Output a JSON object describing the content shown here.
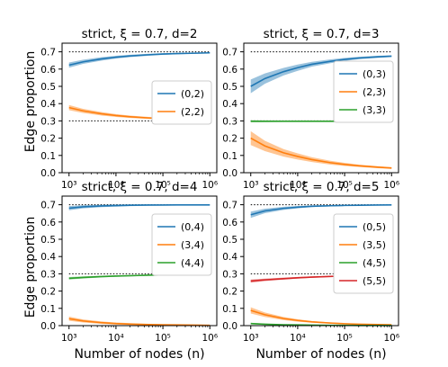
{
  "figure": {
    "ylabel_top": "Edge proportion",
    "ylabel_bottom": "Edge proportion",
    "xlabel_left": "Number of nodes (n)",
    "xlabel_right": "Number of nodes (n)"
  },
  "chart_data": [
    {
      "type": "line",
      "title": "strict, ξ = 0.7, d=2",
      "xscale": "log",
      "xlim": [
        1000,
        1000000
      ],
      "ylim": [
        0,
        0.75
      ],
      "xticks": [
        "10³",
        "10⁴",
        "10⁵",
        "10⁶"
      ],
      "yticks": [
        "0.0",
        "0.1",
        "0.2",
        "0.3",
        "0.4",
        "0.5",
        "0.6",
        "0.7"
      ],
      "reference_lines": [
        0.7,
        0.3
      ],
      "legend_position": "right",
      "x": [
        1000,
        2000,
        5000,
        10000,
        20000,
        50000,
        100000,
        200000,
        500000,
        1000000
      ],
      "series": [
        {
          "name": "(0,2)",
          "color": "#1f77b4",
          "values": [
            0.623,
            0.642,
            0.659,
            0.669,
            0.676,
            0.683,
            0.687,
            0.69,
            0.692,
            0.694
          ],
          "band": [
            0.015,
            0.012,
            0.01,
            0.008,
            0.007,
            0.006,
            0.005,
            0.004,
            0.003,
            0.003
          ]
        },
        {
          "name": "(2,2)",
          "color": "#ff7f0e",
          "values": [
            0.377,
            0.358,
            0.341,
            0.331,
            0.324,
            0.317,
            0.313,
            0.31,
            0.308,
            0.306
          ],
          "band": [
            0.015,
            0.012,
            0.01,
            0.008,
            0.007,
            0.006,
            0.005,
            0.004,
            0.003,
            0.003
          ]
        }
      ]
    },
    {
      "type": "line",
      "title": "strict, ξ = 0.7, d=3",
      "xscale": "log",
      "xlim": [
        1000,
        1000000
      ],
      "ylim": [
        0,
        0.75
      ],
      "xticks": [
        "10³",
        "10⁴",
        "10⁵",
        "10⁶"
      ],
      "yticks": [
        "0.0",
        "0.1",
        "0.2",
        "0.3",
        "0.4",
        "0.5",
        "0.6",
        "0.7"
      ],
      "reference_lines": [
        0.7,
        0.3
      ],
      "legend_position": "right",
      "x": [
        1000,
        2000,
        5000,
        10000,
        20000,
        50000,
        100000,
        200000,
        500000,
        1000000
      ],
      "series": [
        {
          "name": "(0,3)",
          "color": "#1f77b4",
          "values": [
            0.5,
            0.545,
            0.585,
            0.608,
            0.628,
            0.645,
            0.656,
            0.664,
            0.671,
            0.675
          ],
          "band": [
            0.04,
            0.03,
            0.022,
            0.018,
            0.014,
            0.011,
            0.009,
            0.007,
            0.006,
            0.005
          ]
        },
        {
          "name": "(2,3)",
          "color": "#ff7f0e",
          "values": [
            0.2,
            0.155,
            0.115,
            0.094,
            0.076,
            0.058,
            0.048,
            0.04,
            0.032,
            0.027
          ],
          "band": [
            0.04,
            0.03,
            0.022,
            0.018,
            0.014,
            0.011,
            0.009,
            0.007,
            0.006,
            0.005
          ]
        },
        {
          "name": "(3,3)",
          "color": "#2ca02c",
          "values": [
            0.298,
            0.298,
            0.298,
            0.298,
            0.298,
            0.298,
            0.298,
            0.298,
            0.298,
            0.298
          ],
          "band": [
            0.006,
            0.005,
            0.004,
            0.004,
            0.003,
            0.003,
            0.002,
            0.002,
            0.002,
            0.002
          ]
        }
      ]
    },
    {
      "type": "line",
      "title": "strict, ξ = 0.7, d=4",
      "xscale": "log",
      "xlim": [
        1000,
        1000000
      ],
      "ylim": [
        0,
        0.75
      ],
      "xticks": [
        "10³",
        "10⁴",
        "10⁵",
        "10⁶"
      ],
      "yticks": [
        "0.0",
        "0.1",
        "0.2",
        "0.3",
        "0.4",
        "0.5",
        "0.6",
        "0.7"
      ],
      "reference_lines": [
        0.7,
        0.3
      ],
      "legend_position": "right",
      "x": [
        1000,
        2000,
        5000,
        10000,
        20000,
        50000,
        100000,
        200000,
        500000,
        1000000
      ],
      "series": [
        {
          "name": "(0,4)",
          "color": "#1f77b4",
          "values": [
            0.68,
            0.688,
            0.693,
            0.695,
            0.697,
            0.698,
            0.698,
            0.699,
            0.699,
            0.699
          ],
          "band": [
            0.012,
            0.009,
            0.007,
            0.006,
            0.005,
            0.004,
            0.003,
            0.003,
            0.002,
            0.002
          ]
        },
        {
          "name": "(3,4)",
          "color": "#ff7f0e",
          "values": [
            0.04,
            0.027,
            0.017,
            0.012,
            0.009,
            0.006,
            0.005,
            0.004,
            0.003,
            0.002
          ],
          "band": [
            0.012,
            0.009,
            0.007,
            0.006,
            0.005,
            0.004,
            0.003,
            0.003,
            0.002,
            0.002
          ]
        },
        {
          "name": "(4,4)",
          "color": "#2ca02c",
          "values": [
            0.274,
            0.279,
            0.284,
            0.287,
            0.289,
            0.292,
            0.294,
            0.295,
            0.296,
            0.297
          ],
          "band": [
            0.007,
            0.006,
            0.005,
            0.004,
            0.004,
            0.003,
            0.003,
            0.002,
            0.002,
            0.002
          ]
        }
      ]
    },
    {
      "type": "line",
      "title": "strict, ξ = 0.7, d=5",
      "xscale": "log",
      "xlim": [
        1000,
        1000000
      ],
      "ylim": [
        0,
        0.75
      ],
      "xticks": [
        "10³",
        "10⁴",
        "10⁵",
        "10⁶"
      ],
      "yticks": [
        "0.0",
        "0.1",
        "0.2",
        "0.3",
        "0.4",
        "0.5",
        "0.6",
        "0.7"
      ],
      "reference_lines": [
        0.7,
        0.3
      ],
      "legend_position": "right",
      "x": [
        1000,
        2000,
        5000,
        10000,
        20000,
        50000,
        100000,
        200000,
        500000,
        1000000
      ],
      "series": [
        {
          "name": "(0,5)",
          "color": "#1f77b4",
          "values": [
            0.642,
            0.664,
            0.679,
            0.686,
            0.691,
            0.694,
            0.696,
            0.697,
            0.698,
            0.699
          ],
          "band": [
            0.018,
            0.013,
            0.009,
            0.007,
            0.005,
            0.004,
            0.003,
            0.003,
            0.002,
            0.002
          ]
        },
        {
          "name": "(3,5)",
          "color": "#ff7f0e",
          "values": [
            0.088,
            0.063,
            0.041,
            0.03,
            0.022,
            0.015,
            0.011,
            0.008,
            0.006,
            0.005
          ],
          "band": [
            0.018,
            0.013,
            0.009,
            0.007,
            0.005,
            0.004,
            0.003,
            0.003,
            0.002,
            0.002
          ]
        },
        {
          "name": "(4,5)",
          "color": "#2ca02c",
          "values": [
            0.012,
            0.008,
            0.005,
            0.004,
            0.003,
            0.002,
            0.002,
            0.001,
            0.001,
            0.001
          ],
          "band": [
            0.004,
            0.003,
            0.002,
            0.002,
            0.001,
            0.001,
            0.001,
            0.001,
            0.001,
            0.001
          ]
        },
        {
          "name": "(5,5)",
          "color": "#d62728",
          "values": [
            0.258,
            0.265,
            0.272,
            0.277,
            0.281,
            0.285,
            0.288,
            0.29,
            0.292,
            0.294
          ],
          "band": [
            0.009,
            0.007,
            0.006,
            0.005,
            0.004,
            0.003,
            0.003,
            0.002,
            0.002,
            0.002
          ]
        }
      ]
    }
  ]
}
